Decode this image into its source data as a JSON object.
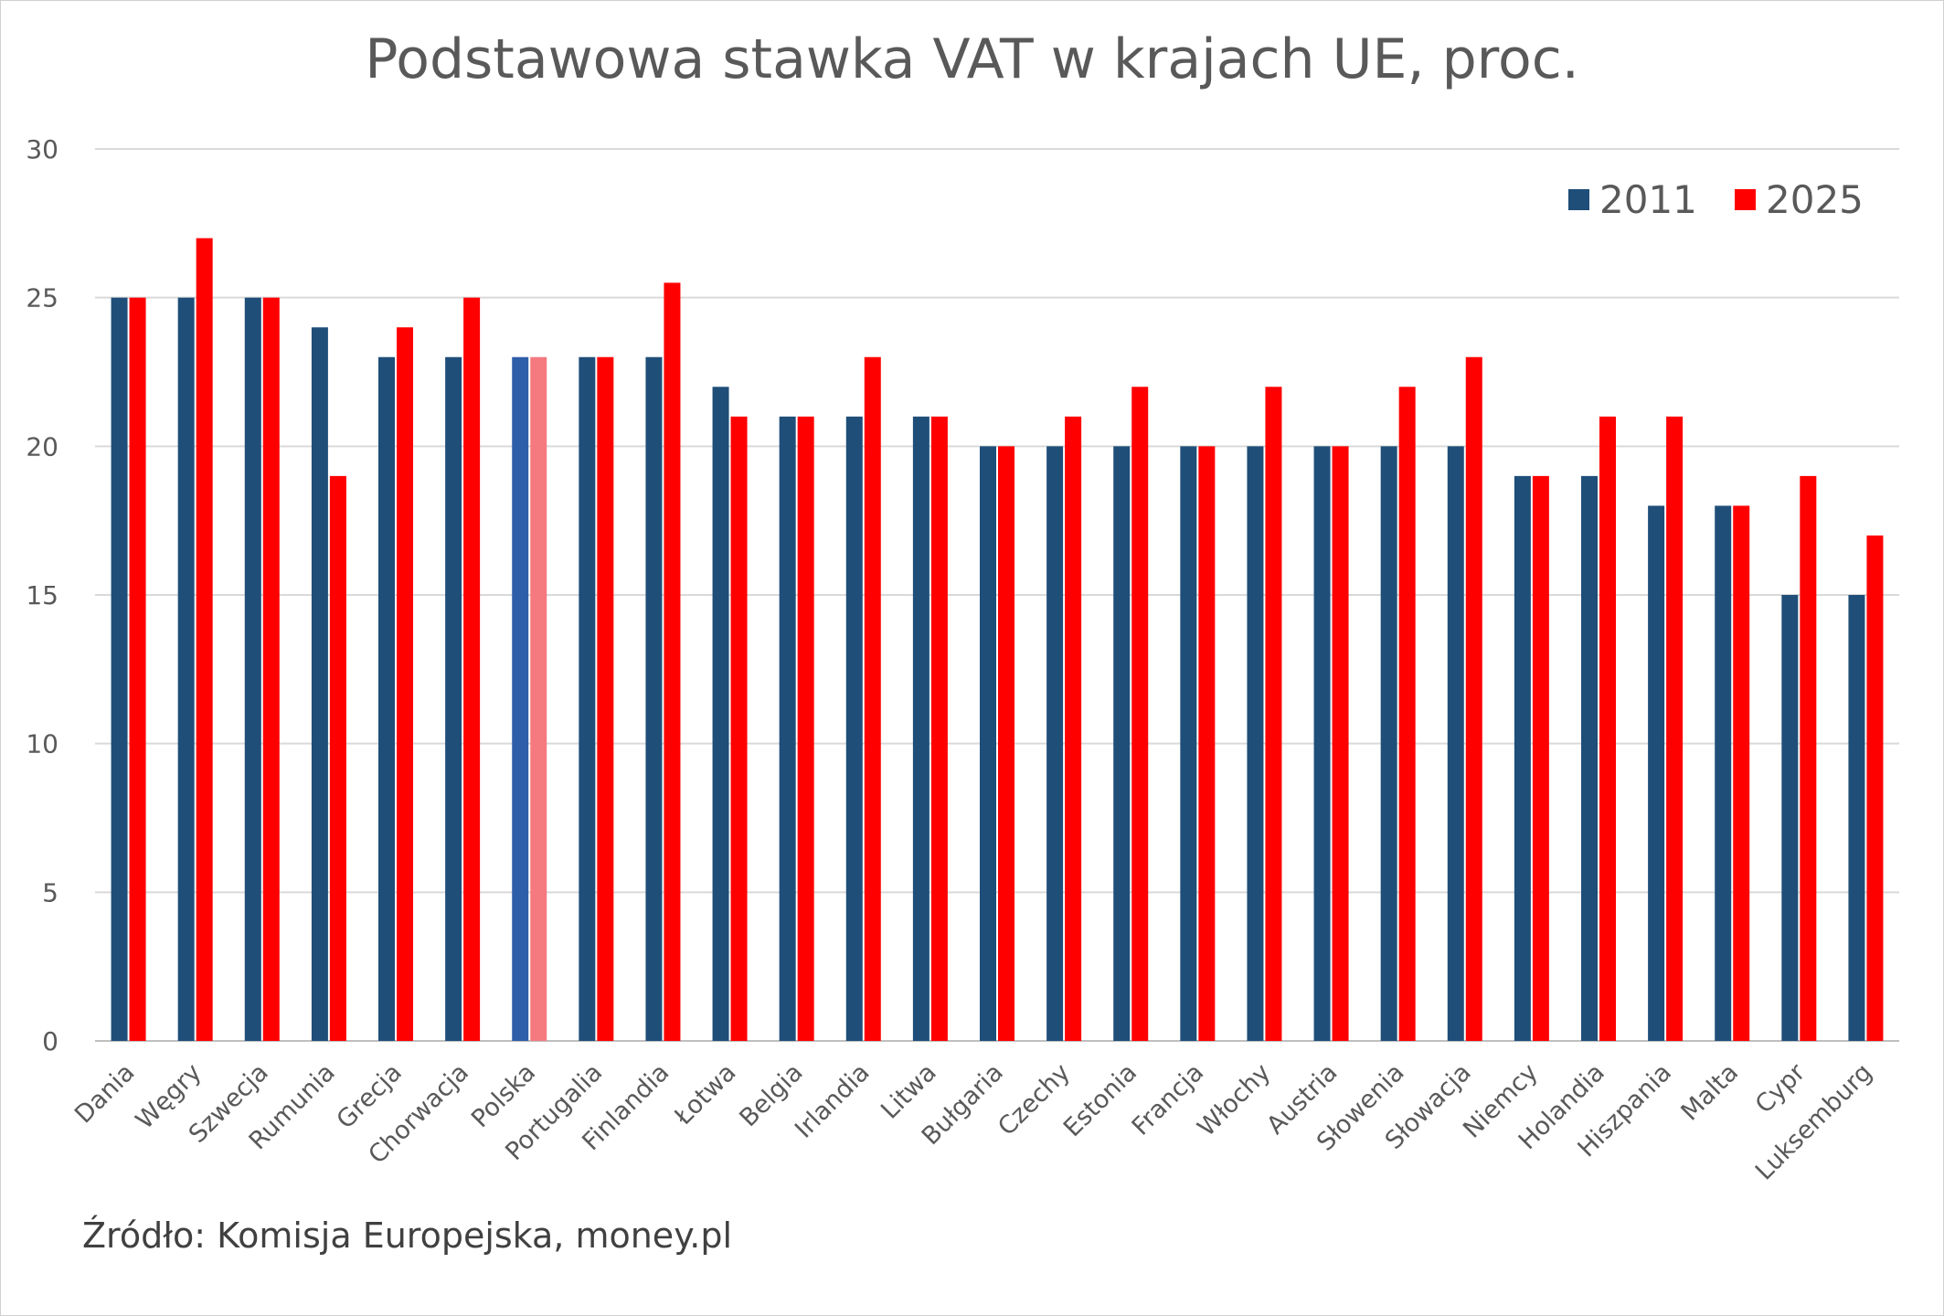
{
  "chart_data": {
    "type": "bar",
    "title": "Podstawowa stawka VAT w krajach UE, proc.",
    "xlabel": "",
    "ylabel": "",
    "ylim": [
      0,
      30
    ],
    "yticks": [
      0,
      5,
      10,
      15,
      20,
      25,
      30
    ],
    "grid": true,
    "legend_placement": "top-right",
    "categories": [
      "Dania",
      "Węgry",
      "Szwecja",
      "Rumunia",
      "Grecja",
      "Chorwacja",
      "Polska",
      "Portugalia",
      "Finlandia",
      "Łotwa",
      "Belgia",
      "Irlandia",
      "Litwa",
      "Bułgaria",
      "Czechy",
      "Estonia",
      "Francja",
      "Włochy",
      "Austria",
      "Słowenia",
      "Słowacja",
      "Niemcy",
      "Holandia",
      "Hiszpania",
      "Malta",
      "Cypr",
      "Luksemburg"
    ],
    "series": [
      {
        "name": "2011",
        "color": "#1f4e79",
        "values": [
          25,
          25,
          25,
          24,
          23,
          23,
          23,
          23,
          23,
          22,
          21,
          21,
          21,
          20,
          20,
          20,
          20,
          20,
          20,
          20,
          20,
          19,
          19,
          18,
          18,
          15,
          15
        ]
      },
      {
        "name": "2025",
        "color": "#ff0000",
        "values": [
          25,
          27,
          25,
          19,
          24,
          25,
          23,
          23,
          25.5,
          21,
          21,
          23,
          21,
          20,
          21,
          22,
          20,
          22,
          20,
          22,
          23,
          19,
          21,
          21,
          18,
          19,
          17
        ]
      }
    ],
    "highlight": {
      "category": "Polska",
      "colors": {
        "2011": "#2f5ea8",
        "2025": "#f47a80"
      }
    },
    "source": "Źródło: Komisja Europejska, money.pl"
  }
}
